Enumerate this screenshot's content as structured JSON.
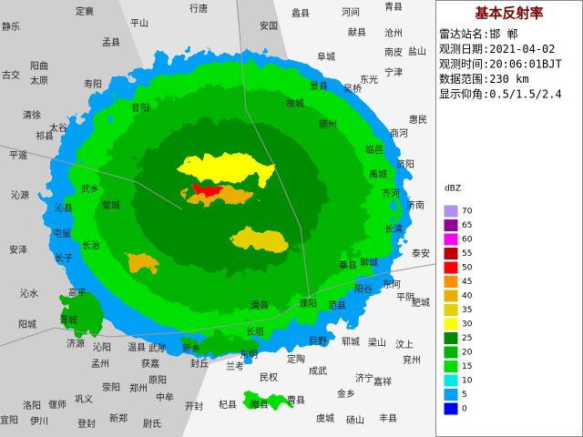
{
  "panel": {
    "title": "基本反射率",
    "lines": [
      "雷达站名:邯 郸",
      "观测日期:2021-04-02",
      "观测时间:20:06:01BJT",
      "数据范围:230 km",
      "显示仰角:0.5/1.5/2.4"
    ]
  },
  "legend": {
    "unit": "dBZ",
    "items": [
      {
        "value": 70,
        "color": "#ad90f0"
      },
      {
        "value": 65,
        "color": "#960096"
      },
      {
        "value": 60,
        "color": "#ff00f0"
      },
      {
        "value": 55,
        "color": "#c00000"
      },
      {
        "value": 50,
        "color": "#ff0000"
      },
      {
        "value": 45,
        "color": "#ff9000"
      },
      {
        "value": 40,
        "color": "#e7b000"
      },
      {
        "value": 35,
        "color": "#e7d000"
      },
      {
        "value": 30,
        "color": "#ffff00"
      },
      {
        "value": 25,
        "color": "#008c00"
      },
      {
        "value": 20,
        "color": "#00b400"
      },
      {
        "value": 15,
        "color": "#00e000"
      },
      {
        "value": 10,
        "color": "#00e8e8"
      },
      {
        "value": 5,
        "color": "#00a0f6"
      },
      {
        "value": 0,
        "color": "#0000f6"
      }
    ]
  },
  "places": [
    "静乐",
    "定襄",
    "平山",
    "行唐",
    "安国",
    "蠡县",
    "河间",
    "青县",
    "献县",
    "沧州",
    "孟县",
    "寿阳",
    "阳曲",
    "太原",
    "古交",
    "清徐",
    "太谷",
    "祁县",
    "平遥",
    "昔阳",
    "沁源",
    "武乡",
    "黎城",
    "沁县",
    "屯留",
    "长治",
    "安泽",
    "长子",
    "沁水",
    "高平",
    "阳城",
    "晋城",
    "济源",
    "沁阳",
    "温县",
    "武陟",
    "孟州",
    "获嘉",
    "原阳",
    "新乡",
    "濮阳",
    "东阿",
    "平阴",
    "肥城",
    "泰安",
    "济南",
    "长清",
    "齐河",
    "德州",
    "景县",
    "阜城",
    "吴桥",
    "东光",
    "宁津",
    "南皮",
    "盐山",
    "商河",
    "惠民",
    "梁山",
    "巨野",
    "郓城",
    "汶上",
    "兖州",
    "济宁",
    "嘉祥",
    "金乡",
    "成武",
    "定陶",
    "东明",
    "兰考",
    "开封",
    "中牟",
    "郑州",
    "荥阳",
    "巩义",
    "偃师",
    "洛阳",
    "伊川",
    "宜阳",
    "登封",
    "新郑",
    "尉氏",
    "杞县",
    "睢县",
    "民权",
    "曹县",
    "虞城",
    "砀山",
    "丰县",
    "故城",
    "临邑",
    "禹城",
    "济阳",
    "聊城",
    "莘县",
    "阳谷",
    "范县",
    "滑县",
    "长垣",
    "封丘"
  ]
}
